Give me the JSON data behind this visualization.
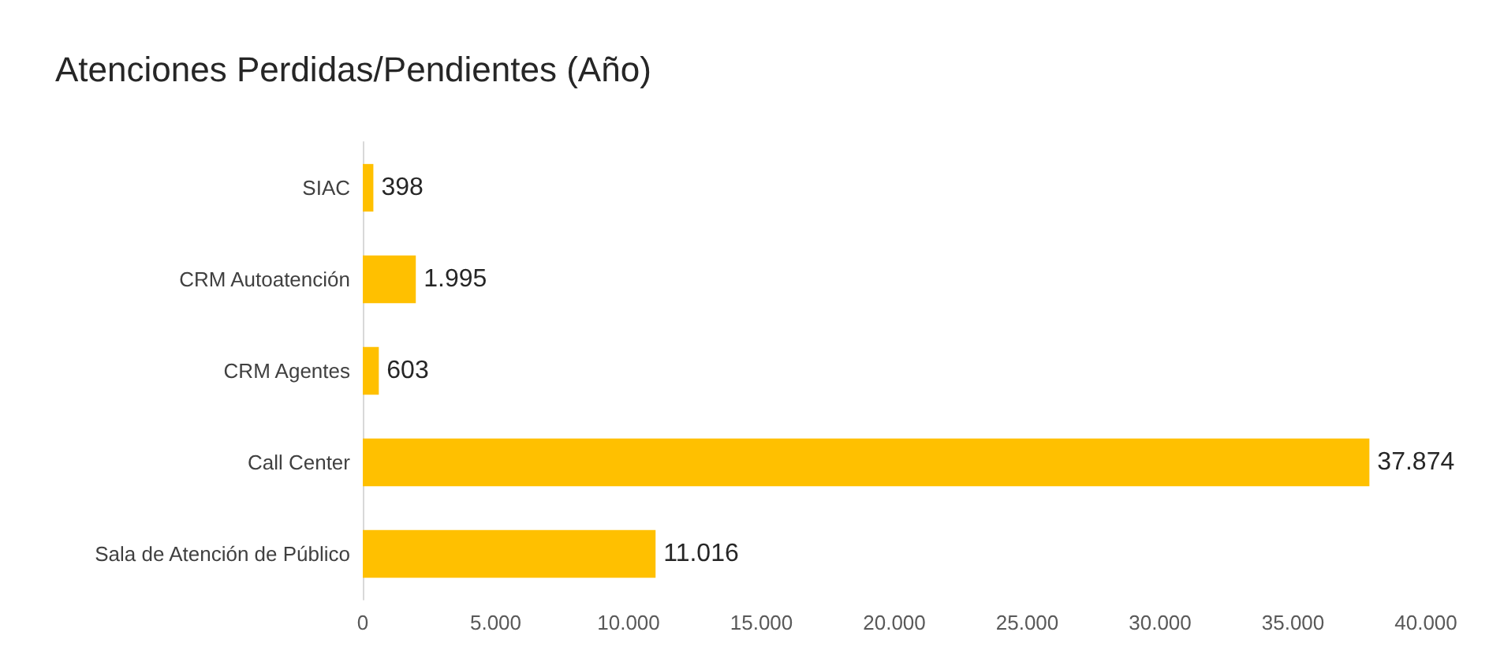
{
  "chart_data": {
    "type": "bar",
    "orientation": "horizontal",
    "title": "Atenciones Perdidas/Pendientes (Año)",
    "categories": [
      "SIAC",
      "CRM Autoatención",
      "CRM Agentes",
      "Call Center",
      "Sala de Atención de Público"
    ],
    "values": [
      398,
      1995,
      603,
      37874,
      11016
    ],
    "value_labels": [
      "398",
      "1.995",
      "603",
      "37.874",
      "11.016"
    ],
    "color": "#ffc000",
    "xlim": [
      0,
      40000
    ],
    "xticks": [
      {
        "value": 0,
        "label": "0"
      },
      {
        "value": 5000,
        "label": "5.000"
      },
      {
        "value": 10000,
        "label": "10.000"
      },
      {
        "value": 15000,
        "label": "15.000"
      },
      {
        "value": 20000,
        "label": "20.000"
      },
      {
        "value": 25000,
        "label": "25.000"
      },
      {
        "value": 30000,
        "label": "30.000"
      },
      {
        "value": 35000,
        "label": "35.000"
      },
      {
        "value": 40000,
        "label": "40.000"
      }
    ],
    "grid": false
  }
}
